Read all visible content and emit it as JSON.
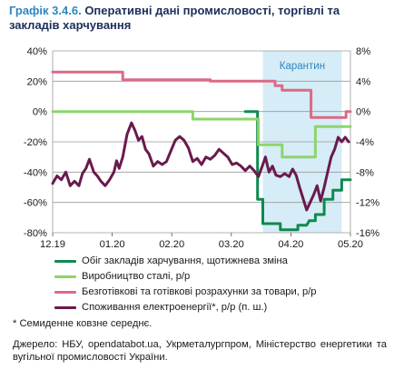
{
  "figure": {
    "number": "Графік 3.4.6.",
    "title": "Оперативні дані промисловості, торгівлі та закладів харчування"
  },
  "chart_data": {
    "type": "line",
    "x_labels": [
      "12.19",
      "01.20",
      "02.20",
      "03.20",
      "04.20",
      "05.20"
    ],
    "left_axis": {
      "ticks": [
        "40%",
        "20%",
        "0%",
        "-20%",
        "-40%",
        "-60%",
        "-80%"
      ],
      "ylim": [
        -80,
        40
      ],
      "unit": "%"
    },
    "right_axis": {
      "ticks": [
        "8%",
        "4%",
        "0%",
        "-4%",
        "-8%",
        "-12%",
        "-16%"
      ],
      "ylim": [
        -16,
        8
      ],
      "unit": "%"
    },
    "shaded_region": {
      "label": "Карантин",
      "from_week": 24,
      "to_week": 33,
      "color": "#d6ecf7"
    },
    "gridlines": true,
    "series": [
      {
        "name": "Обіг закладів харчування, щотижнева зміна",
        "color": "#0f8a4e",
        "axis": "left",
        "step": true,
        "points": [
          [
            22,
            0
          ],
          [
            23,
            0
          ],
          [
            23.4,
            0
          ],
          [
            23.4,
            -58
          ],
          [
            24,
            -58
          ],
          [
            24,
            -74
          ],
          [
            25,
            -74
          ],
          [
            26,
            -74
          ],
          [
            26,
            -78
          ],
          [
            28,
            -78
          ],
          [
            28,
            -75
          ],
          [
            29,
            -75
          ],
          [
            29.3,
            -72
          ],
          [
            30,
            -72
          ],
          [
            30,
            -68
          ],
          [
            31,
            -68
          ],
          [
            31,
            -58
          ],
          [
            32,
            -58
          ],
          [
            32,
            -52
          ],
          [
            33,
            -52
          ],
          [
            33,
            -45
          ],
          [
            34,
            -45
          ]
        ]
      },
      {
        "name": "Виробництво сталі, р/р",
        "color": "#8dd56a",
        "axis": "left",
        "step": true,
        "points": [
          [
            0,
            0
          ],
          [
            16,
            0
          ],
          [
            16,
            -5
          ],
          [
            23.5,
            -5
          ],
          [
            23.5,
            -22
          ],
          [
            26.2,
            -22
          ],
          [
            26.2,
            -30
          ],
          [
            30,
            -30
          ],
          [
            30,
            -10
          ],
          [
            34,
            -10
          ]
        ]
      },
      {
        "name": "Безготівкові та готівкові розрахунки за товари, р/р",
        "color": "#db6a86",
        "axis": "left",
        "step": true,
        "points": [
          [
            0,
            26
          ],
          [
            8,
            26
          ],
          [
            8,
            21
          ],
          [
            18,
            21
          ],
          [
            18,
            20
          ],
          [
            25.4,
            20
          ],
          [
            25.4,
            17
          ],
          [
            26.2,
            17
          ],
          [
            26.2,
            14
          ],
          [
            29.5,
            14
          ],
          [
            29.5,
            -4
          ],
          [
            33.5,
            -4
          ],
          [
            33.5,
            0
          ],
          [
            34,
            0
          ]
        ]
      },
      {
        "name": "Споживання електроенергії*, р/р (п. ш.)",
        "color": "#6a1a4d",
        "axis": "right",
        "step": false,
        "points": [
          [
            0,
            -9.5
          ],
          [
            0.5,
            -8.5
          ],
          [
            1,
            -9
          ],
          [
            1.5,
            -8
          ],
          [
            2,
            -9.8
          ],
          [
            2.5,
            -9.2
          ],
          [
            3,
            -9.8
          ],
          [
            3.4,
            -8.2
          ],
          [
            3.8,
            -7.5
          ],
          [
            4.2,
            -6.3
          ],
          [
            4.7,
            -8
          ],
          [
            5.1,
            -8.5
          ],
          [
            5.5,
            -9.2
          ],
          [
            6,
            -9.8
          ],
          [
            6.5,
            -9
          ],
          [
            7,
            -8
          ],
          [
            7.3,
            -6.5
          ],
          [
            7.6,
            -7.5
          ],
          [
            8,
            -6
          ],
          [
            8.5,
            -3
          ],
          [
            9,
            -1.5
          ],
          [
            9.4,
            -2.5
          ],
          [
            9.8,
            -3.8
          ],
          [
            10.2,
            -3.3
          ],
          [
            10.6,
            -5
          ],
          [
            11,
            -5.6
          ],
          [
            11.5,
            -7.2
          ],
          [
            12,
            -6.6
          ],
          [
            12.5,
            -7
          ],
          [
            13,
            -6.6
          ],
          [
            13.5,
            -5.2
          ],
          [
            14,
            -3.8
          ],
          [
            14.5,
            -3.3
          ],
          [
            15,
            -3.8
          ],
          [
            15.5,
            -4.8
          ],
          [
            16,
            -6.6
          ],
          [
            16.5,
            -6.2
          ],
          [
            17,
            -7
          ],
          [
            17.5,
            -6
          ],
          [
            18,
            -6.3
          ],
          [
            18.5,
            -5.8
          ],
          [
            19,
            -5
          ],
          [
            19.5,
            -5.5
          ],
          [
            20,
            -6
          ],
          [
            20.5,
            -7
          ],
          [
            21,
            -6.8
          ],
          [
            21.5,
            -7.2
          ],
          [
            22,
            -7.8
          ],
          [
            22.5,
            -7.2
          ],
          [
            23,
            -7.8
          ],
          [
            23.5,
            -8.6
          ],
          [
            24,
            -7
          ],
          [
            24.3,
            -6
          ],
          [
            24.7,
            -8
          ],
          [
            25.1,
            -7.2
          ],
          [
            25.5,
            -8.4
          ],
          [
            26,
            -8.6
          ],
          [
            26.5,
            -8.2
          ],
          [
            27,
            -8.6
          ],
          [
            27.4,
            -7.6
          ],
          [
            27.8,
            -8.4
          ],
          [
            28.2,
            -10
          ],
          [
            28.6,
            -11.5
          ],
          [
            29,
            -13
          ],
          [
            29.4,
            -12
          ],
          [
            29.8,
            -11
          ],
          [
            30.2,
            -9.8
          ],
          [
            30.6,
            -11.8
          ],
          [
            31,
            -10
          ],
          [
            31.4,
            -8
          ],
          [
            31.8,
            -6
          ],
          [
            32.2,
            -5
          ],
          [
            32.6,
            -3.4
          ],
          [
            33,
            -4
          ],
          [
            33.4,
            -3.4
          ],
          [
            33.8,
            -4
          ]
        ]
      }
    ]
  },
  "footnote": "* Семиденне ковзне середнє.",
  "source": "Джерело: НБУ, opendatabot.ua, Укрметалургпром, Міністерство енергетики та вугільної промисловості України."
}
